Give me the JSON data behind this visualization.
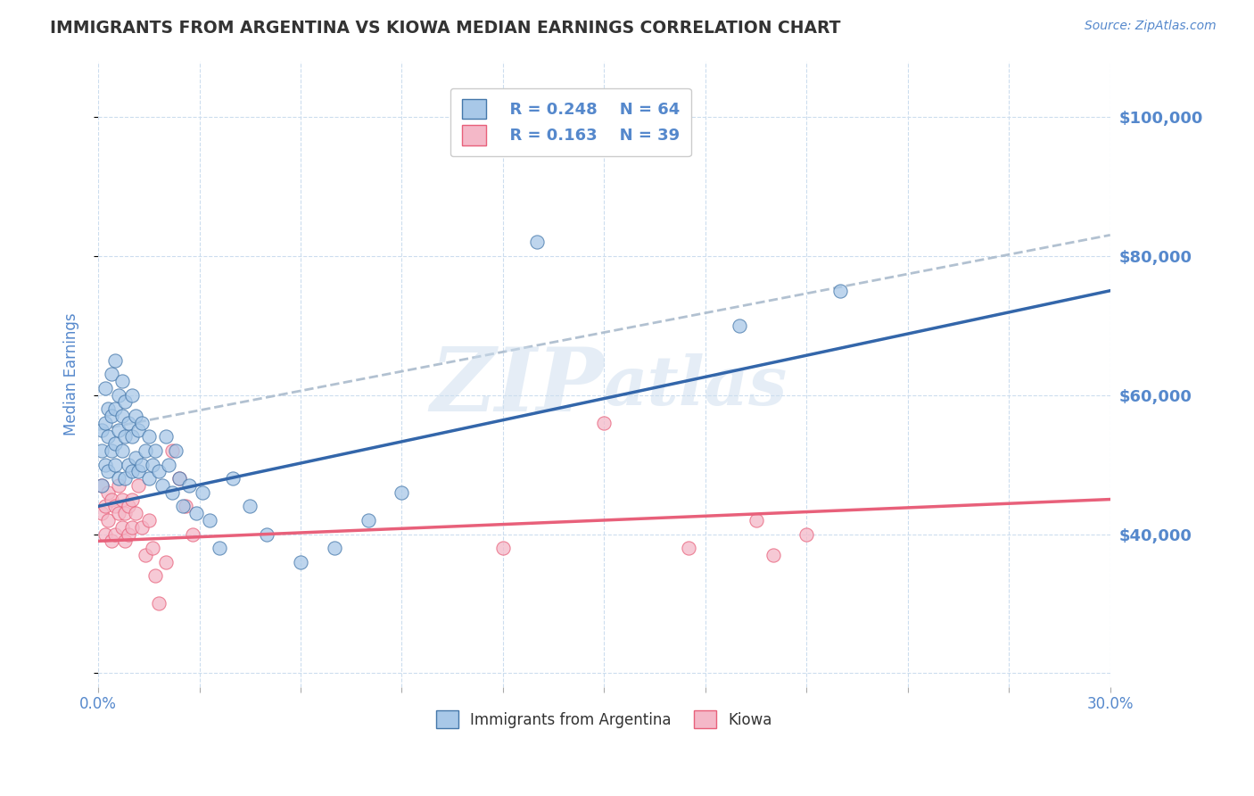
{
  "title": "IMMIGRANTS FROM ARGENTINA VS KIOWA MEDIAN EARNINGS CORRELATION CHART",
  "source": "Source: ZipAtlas.com",
  "ylabel": "Median Earnings",
  "xlim": [
    0.0,
    0.3
  ],
  "ylim": [
    18000,
    108000
  ],
  "series1_label": "Immigrants from Argentina",
  "series2_label": "Kiowa",
  "color_blue_fill": "#A8C8E8",
  "color_blue_edge": "#4477AA",
  "color_pink_fill": "#F4B8C8",
  "color_pink_edge": "#E8607A",
  "color_blue_line": "#3366AA",
  "color_pink_line": "#E8607A",
  "color_dashed": "#AABBCC",
  "color_axis": "#5588CC",
  "color_grid": "#CCDDEE",
  "color_title": "#333333",
  "color_source": "#5588CC",
  "color_watermark": "#CCDDEE",
  "background_color": "#FFFFFF",
  "legend_r1": "R = 0.248",
  "legend_n1": "N = 64",
  "legend_r2": "R = 0.163",
  "legend_n2": "N = 39",
  "blue_trend": [
    0.0,
    0.3,
    44000,
    75000
  ],
  "pink_trend": [
    0.0,
    0.3,
    39000,
    45000
  ],
  "dashed_trend": [
    0.0,
    0.3,
    55000,
    83000
  ],
  "blue_x": [
    0.001,
    0.001,
    0.001,
    0.002,
    0.002,
    0.002,
    0.003,
    0.003,
    0.003,
    0.004,
    0.004,
    0.004,
    0.005,
    0.005,
    0.005,
    0.005,
    0.006,
    0.006,
    0.006,
    0.007,
    0.007,
    0.007,
    0.008,
    0.008,
    0.008,
    0.009,
    0.009,
    0.01,
    0.01,
    0.01,
    0.011,
    0.011,
    0.012,
    0.012,
    0.013,
    0.013,
    0.014,
    0.015,
    0.015,
    0.016,
    0.017,
    0.018,
    0.019,
    0.02,
    0.021,
    0.022,
    0.023,
    0.024,
    0.025,
    0.027,
    0.029,
    0.031,
    0.033,
    0.036,
    0.04,
    0.045,
    0.05,
    0.06,
    0.07,
    0.08,
    0.09,
    0.13,
    0.19,
    0.22
  ],
  "blue_y": [
    52000,
    47000,
    55000,
    50000,
    56000,
    61000,
    49000,
    54000,
    58000,
    52000,
    57000,
    63000,
    50000,
    53000,
    58000,
    65000,
    48000,
    55000,
    60000,
    52000,
    57000,
    62000,
    48000,
    54000,
    59000,
    50000,
    56000,
    49000,
    54000,
    60000,
    51000,
    57000,
    49000,
    55000,
    50000,
    56000,
    52000,
    48000,
    54000,
    50000,
    52000,
    49000,
    47000,
    54000,
    50000,
    46000,
    52000,
    48000,
    44000,
    47000,
    43000,
    46000,
    42000,
    38000,
    48000,
    44000,
    40000,
    36000,
    38000,
    42000,
    46000,
    82000,
    70000,
    75000
  ],
  "pink_x": [
    0.001,
    0.001,
    0.002,
    0.002,
    0.003,
    0.003,
    0.004,
    0.004,
    0.005,
    0.005,
    0.006,
    0.006,
    0.007,
    0.007,
    0.008,
    0.008,
    0.009,
    0.009,
    0.01,
    0.01,
    0.011,
    0.012,
    0.013,
    0.014,
    0.015,
    0.016,
    0.017,
    0.018,
    0.02,
    0.022,
    0.024,
    0.026,
    0.028,
    0.12,
    0.15,
    0.175,
    0.195,
    0.2,
    0.21
  ],
  "pink_y": [
    43000,
    47000,
    44000,
    40000,
    46000,
    42000,
    45000,
    39000,
    44000,
    40000,
    47000,
    43000,
    41000,
    45000,
    43000,
    39000,
    44000,
    40000,
    45000,
    41000,
    43000,
    47000,
    41000,
    37000,
    42000,
    38000,
    34000,
    30000,
    36000,
    52000,
    48000,
    44000,
    40000,
    38000,
    56000,
    38000,
    42000,
    37000,
    40000
  ]
}
